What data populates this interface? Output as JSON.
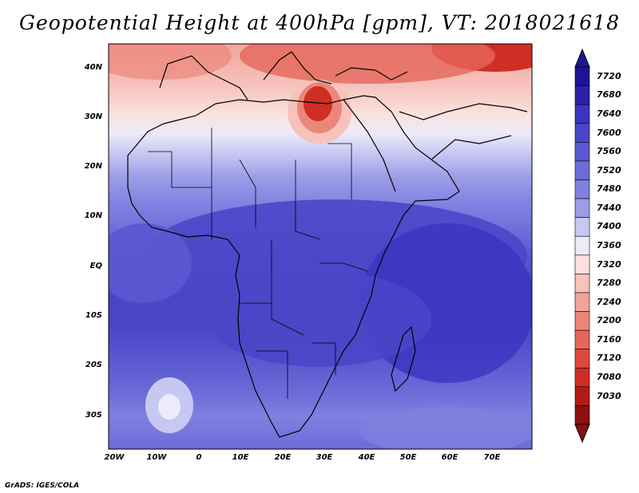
{
  "title": "Geopotential Height at 400hPa [gpm], VT: 2018021618",
  "credit": "GrADS: IGES/COLA",
  "lat_labels": [
    "40N",
    "30N",
    "20N",
    "10N",
    "EQ",
    "10S",
    "20S",
    "30S"
  ],
  "lon_labels": [
    "20W",
    "10W",
    "0",
    "10E",
    "20E",
    "30E",
    "40E",
    "50E",
    "60E",
    "70E"
  ],
  "colorbar": {
    "levels": [
      "7720",
      "7680",
      "7640",
      "7600",
      "7560",
      "7520",
      "7480",
      "7440",
      "7400",
      "7360",
      "7320",
      "7280",
      "7240",
      "7200",
      "7160",
      "7120",
      "7080",
      "7030"
    ],
    "colors": [
      "#1c1593",
      "#2a22a8",
      "#3a34c0",
      "#4a46c8",
      "#5a58d0",
      "#6c6bd8",
      "#7f80e0",
      "#9b9ce8",
      "#c7c8f2",
      "#ebebfa",
      "#fbe0dc",
      "#f6c2bb",
      "#f1a49b",
      "#ec867b",
      "#e5675c",
      "#dc4a3e",
      "#cf2e25",
      "#b01c18",
      "#8c1010"
    ]
  },
  "map": {
    "field": "Geopotential Height",
    "level": "400hPa",
    "units": "gpm",
    "valid_time": "2018021618",
    "lon_range": [
      -20,
      80
    ],
    "lat_range": [
      -37,
      45
    ]
  }
}
